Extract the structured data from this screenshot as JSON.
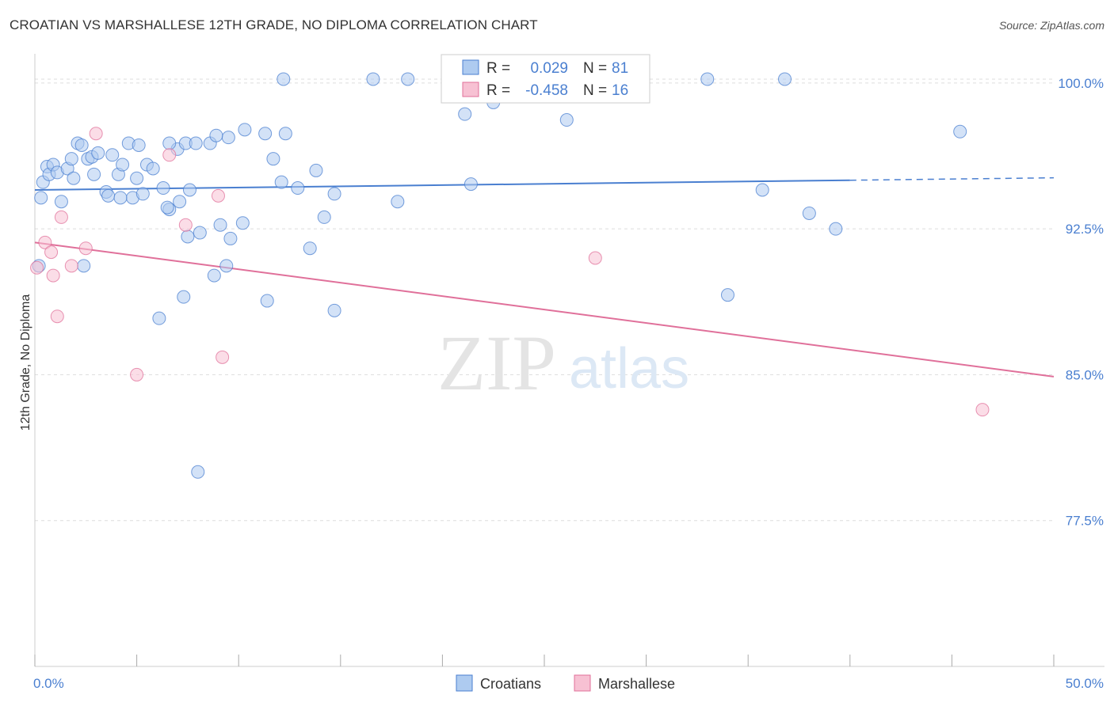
{
  "title": "CROATIAN VS MARSHALLESE 12TH GRADE, NO DIPLOMA CORRELATION CHART",
  "source": "Source: ZipAtlas.com",
  "watermark": {
    "zip": "ZIP",
    "atlas": "atlas"
  },
  "colors": {
    "blue": "#4a7fd0",
    "blue_fill": "#aecbf0",
    "pink": "#e0709a",
    "pink_fill": "#f7c1d3",
    "grid": "#dddddd"
  },
  "legend": {
    "rows": [
      {
        "r_label": "R =",
        "r_value": "0.029",
        "n_label": "N =",
        "n_value": "81"
      },
      {
        "r_label": "R =",
        "r_value": "-0.458",
        "n_label": "N =",
        "n_value": "16"
      }
    ]
  },
  "chart_data": {
    "type": "scatter",
    "xlabel": "",
    "ylabel": "12th Grade, No Diploma",
    "xlim": [
      0,
      50
    ],
    "ylim": [
      70.0,
      101.5
    ],
    "x_tick_labels": [
      "0.0%",
      "50.0%"
    ],
    "y_ticks": [
      77.5,
      85.0,
      92.5,
      100.0
    ],
    "y_tick_labels": [
      "77.5%",
      "85.0%",
      "92.5%",
      "100.0%"
    ],
    "grid": true,
    "legend_position": "bottom-center",
    "series": [
      {
        "name": "Croatians",
        "color": "#4a7fd0",
        "trend": {
          "x0": 0,
          "y0": 94.5,
          "x1": 40,
          "y1": 95.0,
          "dashed_to": 50
        },
        "points": [
          [
            0.3,
            94.1
          ],
          [
            0.4,
            94.9
          ],
          [
            0.6,
            95.7
          ],
          [
            0.7,
            95.3
          ],
          [
            0.9,
            95.8
          ],
          [
            1.1,
            95.4
          ],
          [
            1.3,
            93.9
          ],
          [
            1.6,
            95.6
          ],
          [
            1.8,
            96.1
          ],
          [
            1.9,
            95.1
          ],
          [
            2.1,
            96.9
          ],
          [
            2.3,
            96.8
          ],
          [
            2.6,
            96.1
          ],
          [
            2.8,
            96.2
          ],
          [
            2.9,
            95.3
          ],
          [
            3.1,
            96.4
          ],
          [
            3.5,
            94.4
          ],
          [
            3.8,
            96.3
          ],
          [
            4.1,
            95.3
          ],
          [
            4.3,
            95.8
          ],
          [
            4.6,
            96.9
          ],
          [
            4.8,
            94.1
          ],
          [
            5.0,
            95.1
          ],
          [
            5.1,
            96.8
          ],
          [
            5.5,
            95.8
          ],
          [
            5.8,
            95.6
          ],
          [
            6.3,
            94.6
          ],
          [
            6.6,
            93.5
          ],
          [
            7.0,
            96.6
          ],
          [
            7.4,
            96.9
          ],
          [
            7.9,
            96.9
          ],
          [
            8.6,
            96.9
          ],
          [
            9.5,
            97.2
          ],
          [
            10.3,
            97.6
          ],
          [
            11.3,
            97.4
          ],
          [
            11.7,
            96.1
          ],
          [
            12.1,
            94.9
          ],
          [
            12.9,
            94.6
          ],
          [
            13.5,
            91.5
          ],
          [
            14.7,
            94.3
          ],
          [
            16.6,
            100.2
          ],
          [
            18.3,
            100.2
          ],
          [
            21.1,
            98.4
          ],
          [
            22.5,
            99.0
          ],
          [
            25.7,
            100.2
          ],
          [
            26.1,
            98.1
          ],
          [
            33.0,
            100.2
          ],
          [
            34.0,
            89.1
          ],
          [
            35.7,
            94.5
          ],
          [
            36.8,
            100.2
          ],
          [
            38.0,
            93.3
          ],
          [
            39.3,
            92.5
          ],
          [
            45.4,
            97.5
          ],
          [
            6.5,
            93.6
          ],
          [
            7.5,
            92.1
          ],
          [
            8.1,
            92.3
          ],
          [
            9.1,
            92.7
          ],
          [
            9.6,
            92.0
          ],
          [
            7.3,
            89.0
          ],
          [
            6.1,
            87.9
          ],
          [
            8.8,
            90.1
          ],
          [
            9.4,
            90.6
          ],
          [
            11.4,
            88.8
          ],
          [
            14.7,
            88.3
          ],
          [
            8.0,
            80.0
          ],
          [
            2.4,
            90.6
          ],
          [
            3.6,
            94.2
          ],
          [
            4.2,
            94.1
          ],
          [
            5.3,
            94.3
          ],
          [
            7.1,
            93.9
          ],
          [
            12.3,
            97.4
          ],
          [
            12.2,
            100.2
          ],
          [
            0.2,
            90.6
          ],
          [
            8.9,
            97.3
          ],
          [
            10.2,
            92.8
          ],
          [
            13.8,
            95.5
          ],
          [
            17.8,
            93.9
          ],
          [
            21.4,
            94.8
          ],
          [
            6.6,
            96.9
          ],
          [
            7.6,
            94.5
          ],
          [
            14.2,
            93.1
          ]
        ]
      },
      {
        "name": "Marshallese",
        "color": "#e0709a",
        "trend": {
          "x0": 0,
          "y0": 91.8,
          "x1": 50,
          "y1": 84.9
        },
        "points": [
          [
            0.1,
            90.5
          ],
          [
            0.5,
            91.8
          ],
          [
            0.8,
            91.3
          ],
          [
            0.9,
            90.1
          ],
          [
            1.1,
            88.0
          ],
          [
            1.3,
            93.1
          ],
          [
            1.8,
            90.6
          ],
          [
            2.5,
            91.5
          ],
          [
            3.0,
            97.4
          ],
          [
            5.0,
            85.0
          ],
          [
            6.6,
            96.3
          ],
          [
            7.4,
            92.7
          ],
          [
            9.0,
            94.2
          ],
          [
            9.2,
            85.9
          ],
          [
            27.5,
            91.0
          ],
          [
            46.5,
            83.2
          ]
        ]
      }
    ]
  }
}
